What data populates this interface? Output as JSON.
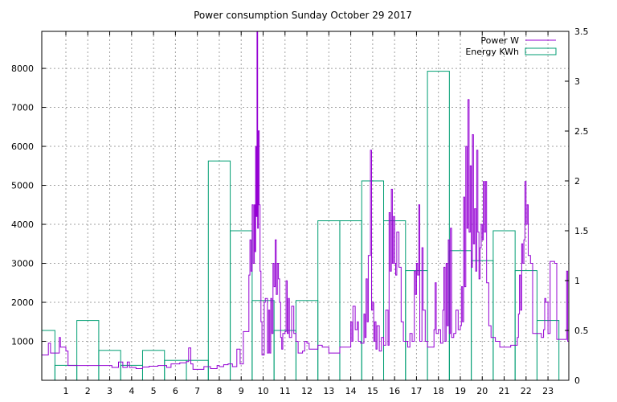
{
  "chart_data": {
    "type": "line",
    "title": "Power consumption Sunday October 29 2017",
    "grid": true,
    "legend_position": "top-right",
    "x": {
      "range": [
        -0.1,
        23.95
      ],
      "ticks": [
        1,
        2,
        3,
        4,
        5,
        6,
        7,
        8,
        9,
        10,
        11,
        12,
        13,
        14,
        15,
        16,
        17,
        18,
        19,
        20,
        21,
        22,
        23
      ],
      "tick_labels": [
        "1",
        "2",
        "3",
        "4",
        "5",
        "6",
        "7",
        "8",
        "9",
        "10",
        "11",
        "12",
        "13",
        "14",
        "15",
        "16",
        "17",
        "18",
        "19",
        "20",
        "21",
        "22",
        "23"
      ]
    },
    "y_left": {
      "range": [
        0,
        8950
      ],
      "ticks": [
        1000,
        2000,
        3000,
        4000,
        5000,
        6000,
        7000,
        8000
      ],
      "tick_labels": [
        "1000",
        "2000",
        "3000",
        "4000",
        "5000",
        "6000",
        "7000",
        "8000"
      ]
    },
    "y_right": {
      "range": [
        0,
        3.5
      ],
      "ticks": [
        0,
        0.5,
        1,
        1.5,
        2,
        2.5,
        3,
        3.5
      ],
      "tick_labels": [
        "0",
        "0.5",
        "1",
        "1.5",
        "2",
        "2.5",
        "3",
        "3.5"
      ]
    },
    "colors": {
      "power": "#9400d3",
      "energy": "#009e73"
    },
    "series": [
      {
        "name": "Power W",
        "axis": "left",
        "style": "line",
        "points": [
          [
            -0.1,
            650
          ],
          [
            0.1,
            650
          ],
          [
            0.2,
            950
          ],
          [
            0.3,
            700
          ],
          [
            0.5,
            700
          ],
          [
            0.7,
            1100
          ],
          [
            0.75,
            850
          ],
          [
            0.9,
            850
          ],
          [
            1.0,
            750
          ],
          [
            1.1,
            380
          ],
          [
            2.0,
            380
          ],
          [
            2.5,
            380
          ],
          [
            2.9,
            380
          ],
          [
            3.1,
            330
          ],
          [
            3.4,
            470
          ],
          [
            3.6,
            330
          ],
          [
            3.8,
            470
          ],
          [
            3.9,
            330
          ],
          [
            4.2,
            300
          ],
          [
            4.5,
            340
          ],
          [
            4.8,
            360
          ],
          [
            5.0,
            360
          ],
          [
            5.2,
            380
          ],
          [
            5.6,
            330
          ],
          [
            5.8,
            420
          ],
          [
            6.2,
            450
          ],
          [
            6.5,
            480
          ],
          [
            6.6,
            830
          ],
          [
            6.7,
            420
          ],
          [
            6.8,
            280
          ],
          [
            7.0,
            280
          ],
          [
            7.3,
            350
          ],
          [
            7.6,
            300
          ],
          [
            7.9,
            380
          ],
          [
            8.0,
            350
          ],
          [
            8.2,
            400
          ],
          [
            8.4,
            420
          ],
          [
            8.6,
            350
          ],
          [
            8.8,
            800
          ],
          [
            8.95,
            420
          ],
          [
            9.1,
            1250
          ],
          [
            9.3,
            1250
          ],
          [
            9.35,
            2700
          ],
          [
            9.4,
            3600
          ],
          [
            9.45,
            2800
          ],
          [
            9.5,
            4500
          ],
          [
            9.55,
            3000
          ],
          [
            9.6,
            4500
          ],
          [
            9.63,
            3300
          ],
          [
            9.66,
            6000
          ],
          [
            9.69,
            4200
          ],
          [
            9.72,
            8950
          ],
          [
            9.75,
            3900
          ],
          [
            9.78,
            6400
          ],
          [
            9.82,
            4500
          ],
          [
            9.86,
            2800
          ],
          [
            9.9,
            1500
          ],
          [
            9.95,
            650
          ],
          [
            10.05,
            2000
          ],
          [
            10.1,
            2100
          ],
          [
            10.2,
            700
          ],
          [
            10.25,
            1800
          ],
          [
            10.3,
            700
          ],
          [
            10.35,
            2100
          ],
          [
            10.4,
            1200
          ],
          [
            10.45,
            3000
          ],
          [
            10.5,
            2400
          ],
          [
            10.55,
            3600
          ],
          [
            10.6,
            2200
          ],
          [
            10.65,
            3000
          ],
          [
            10.7,
            2600
          ],
          [
            10.75,
            2000
          ],
          [
            10.8,
            1100
          ],
          [
            10.85,
            800
          ],
          [
            10.9,
            1200
          ],
          [
            11.0,
            1250
          ],
          [
            11.05,
            2550
          ],
          [
            11.1,
            1200
          ],
          [
            11.15,
            2100
          ],
          [
            11.2,
            1100
          ],
          [
            11.3,
            1900
          ],
          [
            11.4,
            1200
          ],
          [
            11.5,
            1000
          ],
          [
            11.6,
            700
          ],
          [
            11.8,
            750
          ],
          [
            11.9,
            1000
          ],
          [
            12.0,
            950
          ],
          [
            12.1,
            800
          ],
          [
            12.3,
            800
          ],
          [
            12.5,
            900
          ],
          [
            12.7,
            850
          ],
          [
            12.9,
            850
          ],
          [
            13.0,
            700
          ],
          [
            13.4,
            700
          ],
          [
            13.5,
            850
          ],
          [
            13.9,
            850
          ],
          [
            14.0,
            1500
          ],
          [
            14.05,
            1000
          ],
          [
            14.1,
            1900
          ],
          [
            14.2,
            1300
          ],
          [
            14.3,
            1500
          ],
          [
            14.35,
            1000
          ],
          [
            14.45,
            950
          ],
          [
            14.6,
            1700
          ],
          [
            14.65,
            1100
          ],
          [
            14.7,
            2600
          ],
          [
            14.75,
            1500
          ],
          [
            14.8,
            3200
          ],
          [
            14.85,
            3200
          ],
          [
            14.9,
            5900
          ],
          [
            14.95,
            1800
          ],
          [
            15.0,
            2000
          ],
          [
            15.05,
            1000
          ],
          [
            15.1,
            1500
          ],
          [
            15.15,
            800
          ],
          [
            15.2,
            1400
          ],
          [
            15.3,
            750
          ],
          [
            15.4,
            1100
          ],
          [
            15.5,
            900
          ],
          [
            15.6,
            1800
          ],
          [
            15.7,
            900
          ],
          [
            15.75,
            4300
          ],
          [
            15.8,
            2800
          ],
          [
            15.85,
            4900
          ],
          [
            15.9,
            3000
          ],
          [
            15.95,
            4200
          ],
          [
            16.0,
            3000
          ],
          [
            16.05,
            2700
          ],
          [
            16.1,
            3800
          ],
          [
            16.2,
            2900
          ],
          [
            16.3,
            1500
          ],
          [
            16.4,
            1000
          ],
          [
            16.6,
            850
          ],
          [
            16.7,
            1200
          ],
          [
            16.8,
            1000
          ],
          [
            16.9,
            2800
          ],
          [
            16.95,
            2200
          ],
          [
            17.0,
            3000
          ],
          [
            17.05,
            2700
          ],
          [
            17.1,
            4500
          ],
          [
            17.15,
            1000
          ],
          [
            17.25,
            3400
          ],
          [
            17.3,
            1800
          ],
          [
            17.4,
            1000
          ],
          [
            17.5,
            850
          ],
          [
            17.7,
            850
          ],
          [
            17.8,
            1300
          ],
          [
            17.85,
            2500
          ],
          [
            17.9,
            1200
          ],
          [
            18.0,
            1300
          ],
          [
            18.1,
            950
          ],
          [
            18.2,
            1800
          ],
          [
            18.25,
            2900
          ],
          [
            18.3,
            1000
          ],
          [
            18.35,
            3000
          ],
          [
            18.4,
            1400
          ],
          [
            18.45,
            3600
          ],
          [
            18.5,
            1200
          ],
          [
            18.55,
            3900
          ],
          [
            18.6,
            1100
          ],
          [
            18.7,
            1200
          ],
          [
            18.8,
            1800
          ],
          [
            18.9,
            1300
          ],
          [
            19.0,
            1400
          ],
          [
            19.05,
            2400
          ],
          [
            19.1,
            1500
          ],
          [
            19.15,
            4700
          ],
          [
            19.2,
            2400
          ],
          [
            19.25,
            6000
          ],
          [
            19.3,
            3900
          ],
          [
            19.35,
            7200
          ],
          [
            19.4,
            3800
          ],
          [
            19.45,
            5500
          ],
          [
            19.5,
            2900
          ],
          [
            19.55,
            6300
          ],
          [
            19.6,
            3500
          ],
          [
            19.65,
            4400
          ],
          [
            19.7,
            2800
          ],
          [
            19.75,
            5900
          ],
          [
            19.8,
            3800
          ],
          [
            19.85,
            2600
          ],
          [
            19.9,
            3400
          ],
          [
            19.95,
            4000
          ],
          [
            20.0,
            3600
          ],
          [
            20.05,
            5100
          ],
          [
            20.1,
            3800
          ],
          [
            20.15,
            5100
          ],
          [
            20.2,
            2500
          ],
          [
            20.3,
            1400
          ],
          [
            20.4,
            1100
          ],
          [
            20.6,
            1000
          ],
          [
            20.8,
            850
          ],
          [
            21.0,
            850
          ],
          [
            21.1,
            850
          ],
          [
            21.3,
            900
          ],
          [
            21.5,
            900
          ],
          [
            21.6,
            1100
          ],
          [
            21.65,
            1700
          ],
          [
            21.7,
            2700
          ],
          [
            21.75,
            1800
          ],
          [
            21.8,
            3500
          ],
          [
            21.85,
            3000
          ],
          [
            21.9,
            3600
          ],
          [
            21.95,
            5100
          ],
          [
            22.0,
            4000
          ],
          [
            22.05,
            4500
          ],
          [
            22.1,
            3200
          ],
          [
            22.2,
            3000
          ],
          [
            22.3,
            1200
          ],
          [
            22.5,
            1200
          ],
          [
            22.7,
            1100
          ],
          [
            22.8,
            1300
          ],
          [
            22.85,
            2100
          ],
          [
            22.9,
            2000
          ],
          [
            23.0,
            1200
          ],
          [
            23.1,
            3050
          ],
          [
            23.3,
            3000
          ],
          [
            23.4,
            1050
          ],
          [
            23.6,
            1050
          ],
          [
            23.8,
            1050
          ],
          [
            23.85,
            2800
          ],
          [
            23.9,
            1000
          ],
          [
            23.95,
            1250
          ]
        ]
      },
      {
        "name": "Energy KWh",
        "axis": "right",
        "style": "boxes",
        "hours": [
          0,
          1,
          2,
          3,
          4,
          5,
          6,
          7,
          8,
          9,
          10,
          11,
          12,
          13,
          14,
          15,
          16,
          17,
          18,
          19,
          20,
          21,
          22,
          23
        ],
        "values": [
          0.5,
          0.15,
          0.6,
          0.3,
          0.15,
          0.3,
          0.2,
          0.2,
          2.2,
          1.5,
          0.8,
          0.5,
          0.8,
          1.6,
          1.6,
          2.0,
          1.6,
          1.1,
          3.1,
          1.3,
          1.2,
          1.5,
          1.1,
          0.6
        ]
      }
    ]
  }
}
